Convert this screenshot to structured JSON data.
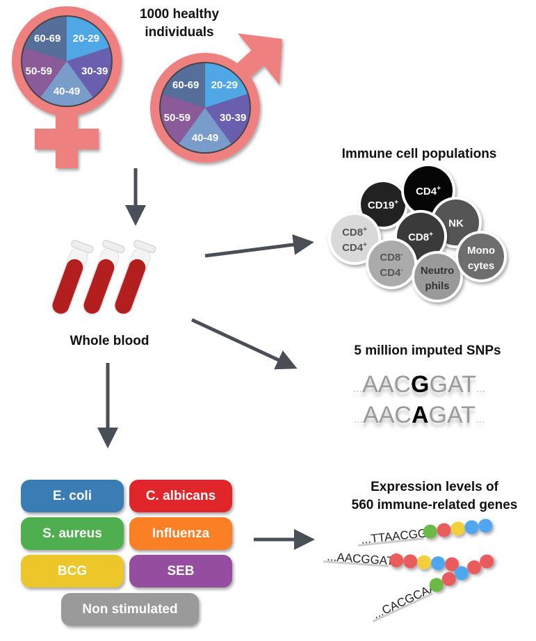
{
  "cohort": {
    "title_line1": "1000 healthy",
    "title_line2": "individuals",
    "age_groups": [
      {
        "label": "20-29",
        "color": "#4FA7E6"
      },
      {
        "label": "30-39",
        "color": "#6A5FAE"
      },
      {
        "label": "40-49",
        "color": "#7A9CCB"
      },
      {
        "label": "50-59",
        "color": "#8A5B98"
      },
      {
        "label": "60-69",
        "color": "#566F9A"
      }
    ],
    "symbol_color": "#EE8080"
  },
  "blood": {
    "label": "Whole blood"
  },
  "immune": {
    "title": "Immune cell populations",
    "cells": [
      {
        "l1": "CD19",
        "s1": "+",
        "l2": "",
        "s2": "",
        "fill": "#222222",
        "text": "#ffffff"
      },
      {
        "l1": "CD4",
        "s1": "+",
        "l2": "",
        "s2": "",
        "fill": "#050505",
        "text": "#ffffff"
      },
      {
        "l1": "NK",
        "s1": "",
        "l2": "",
        "s2": "",
        "fill": "#555555",
        "text": "#ffffff"
      },
      {
        "l1": "CD8",
        "s1": "+",
        "l2": "CD4",
        "s2": "+",
        "fill": "#d9d9d9",
        "text": "#555555"
      },
      {
        "l1": "CD8",
        "s1": "+",
        "l2": "",
        "s2": "",
        "fill": "#3a3a3a",
        "text": "#ffffff"
      },
      {
        "l1": "CD8",
        "s1": "-",
        "l2": "CD4",
        "s2": "-",
        "fill": "#ababab",
        "text": "#555555"
      },
      {
        "l1": "Neutro",
        "s1": "",
        "l2": "phils",
        "s2": "",
        "fill": "#9a9a9a",
        "text": "#333333"
      },
      {
        "l1": "Mono",
        "s1": "",
        "l2": "cytes",
        "s2": "",
        "fill": "#6e6e6e",
        "text": "#ffffff"
      }
    ]
  },
  "snps": {
    "title": "5 million imputed SNPs",
    "seq1": {
      "pre": "AAC",
      "snp": "G",
      "post": "GAT"
    },
    "seq2": {
      "pre": "AAC",
      "snp": "A",
      "post": "GAT"
    },
    "dots": "..."
  },
  "stimuli": {
    "items": [
      {
        "label": "E. coli",
        "color": "#3A7DB5"
      },
      {
        "label": "C. albicans",
        "color": "#E0262B"
      },
      {
        "label": "S. aureus",
        "color": "#4FAE4E"
      },
      {
        "label": "Influenza",
        "color": "#FB7F24"
      },
      {
        "label": "BCG",
        "color": "#EBC72A"
      },
      {
        "label": "SEB",
        "color": "#954E9F"
      }
    ],
    "control": {
      "label": "Non stimulated",
      "color": "#9A9A9A"
    }
  },
  "expression": {
    "title_line1": "Expression levels of",
    "title_line2": "560 immune-related genes",
    "rows": [
      {
        "seq": "...TTAACGG",
        "beads": [
          "#6BBA45",
          "#E85C5C",
          "#F3CF3A",
          "#4FA7F0",
          "#4FA7F0"
        ]
      },
      {
        "seq": "...AACGGAT",
        "beads": [
          "#E85C5C",
          "#E85C5C",
          "#F3CF3A",
          "#4FA7F0",
          "#E85C5C"
        ]
      },
      {
        "seq": "...CACGCAA",
        "beads": [
          "#6BBA45",
          "#E85C5C",
          "#4FA7F0",
          "#E85C5C",
          "#E85C5C"
        ]
      }
    ]
  },
  "arrow_color": "#4A4F57"
}
